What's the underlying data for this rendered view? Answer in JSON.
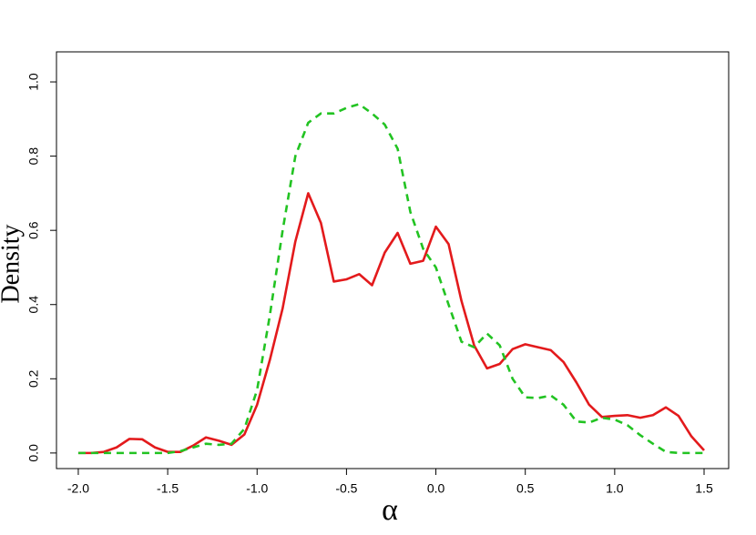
{
  "chart_data": {
    "type": "line",
    "x_label": "α",
    "y_label": "Density",
    "x": [
      -2,
      -1.929,
      -1.857,
      -1.786,
      -1.714,
      -1.643,
      -1.571,
      -1.5,
      -1.429,
      -1.357,
      -1.286,
      -1.214,
      -1.143,
      -1.071,
      -1,
      -0.929,
      -0.857,
      -0.786,
      -0.714,
      -0.643,
      -0.571,
      -0.5,
      -0.429,
      -0.357,
      -0.286,
      -0.214,
      -0.143,
      -0.071,
      0,
      0.071,
      0.143,
      0.214,
      0.286,
      0.357,
      0.429,
      0.5,
      0.571,
      0.643,
      0.714,
      0.786,
      0.857,
      0.929,
      1,
      1.071,
      1.143,
      1.214,
      1.286,
      1.357,
      1.429,
      1.5
    ],
    "series": [
      {
        "color": "#e31a1c",
        "line_style": "solid",
        "values": [
          0,
          0,
          0.003,
          0.015,
          0.038,
          0.037,
          0.015,
          0.003,
          0.003,
          0.02,
          0.042,
          0.033,
          0.022,
          0.05,
          0.13,
          0.25,
          0.39,
          0.57,
          0.7,
          0.62,
          0.462,
          0.468,
          0.482,
          0.452,
          0.54,
          0.593,
          0.51,
          0.518,
          0.61,
          0.563,
          0.41,
          0.29,
          0.228,
          0.24,
          0.28,
          0.293,
          0.285,
          0.277,
          0.245,
          0.19,
          0.13,
          0.097,
          0.1,
          0.102,
          0.095,
          0.102,
          0.123,
          0.1,
          0.045,
          0.007
        ]
      },
      {
        "color": "#22c322",
        "line_style": "dashed",
        "values": [
          0,
          0,
          0,
          0,
          0,
          0,
          0,
          0,
          0.005,
          0.015,
          0.025,
          0.022,
          0.025,
          0.065,
          0.17,
          0.37,
          0.6,
          0.8,
          0.89,
          0.915,
          0.915,
          0.93,
          0.94,
          0.915,
          0.885,
          0.82,
          0.65,
          0.55,
          0.5,
          0.4,
          0.3,
          0.285,
          0.322,
          0.29,
          0.2,
          0.15,
          0.148,
          0.155,
          0.13,
          0.085,
          0.082,
          0.095,
          0.09,
          0.075,
          0.048,
          0.025,
          0.003,
          0,
          0,
          0
        ]
      }
    ],
    "xlim": [
      -2.122,
      1.6375
    ],
    "ylim": [
      -0.042,
      1.081
    ],
    "xticks": [
      {
        "value": -2,
        "label": "-2.0"
      },
      -1.5,
      {
        "value": -1,
        "label": "-1.0"
      },
      -0.5,
      {
        "value": 0,
        "label": "0.0"
      },
      0.5,
      {
        "value": 1,
        "label": "1.0"
      },
      1.5
    ],
    "yticks": [
      {
        "value": 0,
        "label": "0.0"
      },
      0.2,
      0.4,
      0.6,
      0.8,
      {
        "value": 1,
        "label": "1.0"
      }
    ],
    "grid": false
  }
}
